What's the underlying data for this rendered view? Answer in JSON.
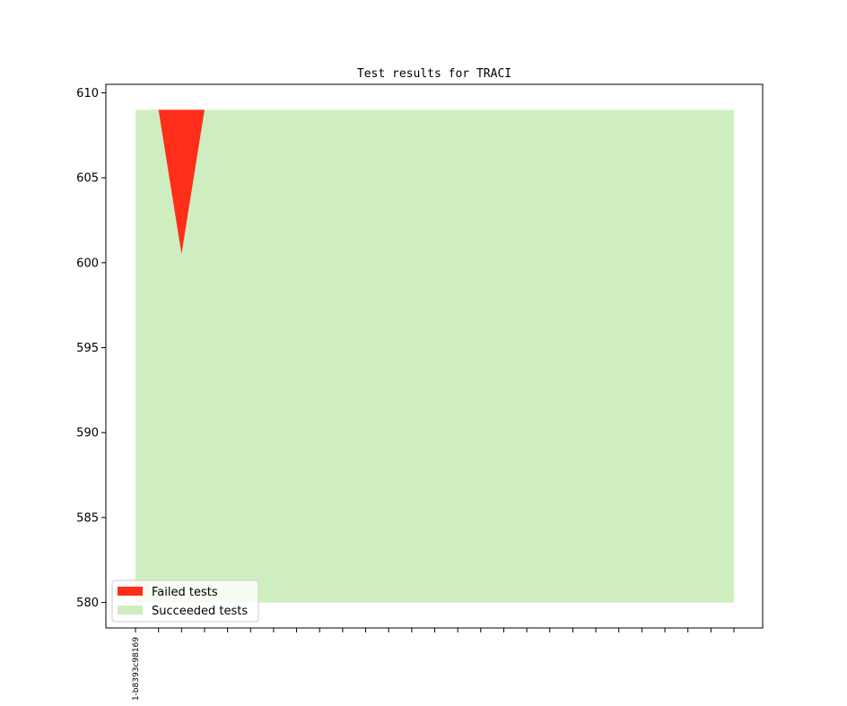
{
  "chart_data": {
    "type": "area",
    "title": "Test results for TRACI",
    "xlabel": "",
    "ylabel": "",
    "ylim": [
      578.5,
      610.5
    ],
    "yticks": [
      580,
      585,
      590,
      595,
      600,
      605,
      610
    ],
    "x_count": 27,
    "x_tick_labels": [
      "1-b8393c98169"
    ],
    "series": [
      {
        "name": "Succeeded tests",
        "color": "#cfeebf",
        "baseline": 580,
        "values": [
          609,
          609,
          600.5,
          609,
          609,
          609,
          609,
          609,
          609,
          609,
          609,
          609,
          609,
          609,
          609,
          609,
          609,
          609,
          609,
          609,
          609,
          609,
          609,
          609,
          609,
          609,
          609
        ]
      },
      {
        "name": "Failed tests",
        "color": "#ff2e1a",
        "top": 609,
        "values": [
          0,
          0,
          8.5,
          0,
          0,
          0,
          0,
          0,
          0,
          0,
          0,
          0,
          0,
          0,
          0,
          0,
          0,
          0,
          0,
          0,
          0,
          0,
          0,
          0,
          0,
          0,
          0
        ]
      }
    ],
    "legend": {
      "position": "lower-left",
      "entries": [
        {
          "label": "Failed tests",
          "color": "#ff2e1a"
        },
        {
          "label": "Succeeded tests",
          "color": "#cfeebf"
        }
      ]
    },
    "grid": false
  }
}
